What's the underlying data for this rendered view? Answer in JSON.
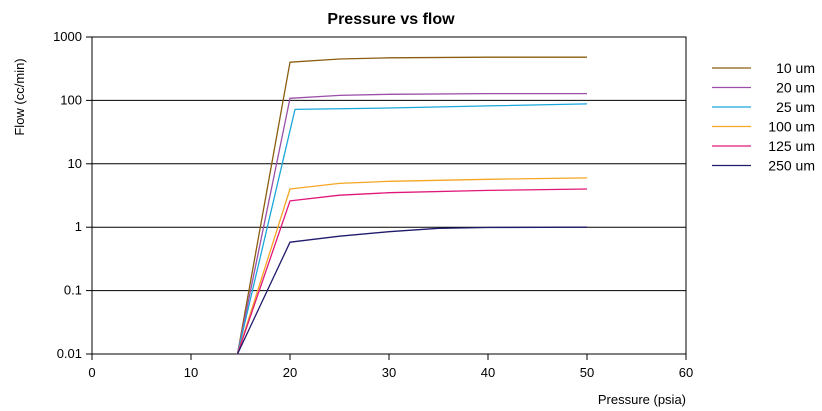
{
  "chart_data": {
    "type": "line",
    "title": "Pressure vs flow",
    "xlabel": "Pressure (psia)",
    "ylabel": "Flow (cc/min)",
    "xlim": [
      0,
      60
    ],
    "ylim": [
      0.01,
      1000
    ],
    "yscale": "log",
    "x_ticks": [
      "0",
      "10",
      "20",
      "30",
      "40",
      "50",
      "60"
    ],
    "y_ticks": [
      "0.01",
      "0.1",
      "1",
      "10",
      "100",
      "1000"
    ],
    "grid": "horizontal",
    "legend_position": "right",
    "series": [
      {
        "name": "10 um",
        "color": "#8B5E0F",
        "x": [
          14.7,
          20,
          25,
          30,
          40,
          50
        ],
        "y": [
          0.01,
          400,
          450,
          470,
          480,
          480
        ]
      },
      {
        "name": "20 um",
        "color": "#9B4FA8",
        "x": [
          14.7,
          20,
          25,
          30,
          40,
          50
        ],
        "y": [
          0.01,
          108,
          120,
          125,
          128,
          128
        ]
      },
      {
        "name": "25 um",
        "color": "#1AA7DB",
        "x": [
          14.7,
          20.5,
          30,
          40,
          50
        ],
        "y": [
          0.01,
          72,
          76,
          82,
          88
        ]
      },
      {
        "name": "100 um",
        "color": "#F5A623",
        "x": [
          14.7,
          20,
          25,
          30,
          40,
          50
        ],
        "y": [
          0.01,
          4.0,
          4.9,
          5.3,
          5.7,
          6.0
        ]
      },
      {
        "name": "125 um",
        "color": "#E0177A",
        "x": [
          14.7,
          20,
          25,
          30,
          40,
          50
        ],
        "y": [
          0.01,
          2.6,
          3.2,
          3.5,
          3.8,
          4.0
        ]
      },
      {
        "name": "250 um",
        "color": "#1F1A6B",
        "x": [
          14.7,
          20,
          25,
          30,
          35,
          40,
          50
        ],
        "y": [
          0.01,
          0.58,
          0.72,
          0.85,
          0.96,
          0.99,
          1.0
        ]
      }
    ]
  }
}
